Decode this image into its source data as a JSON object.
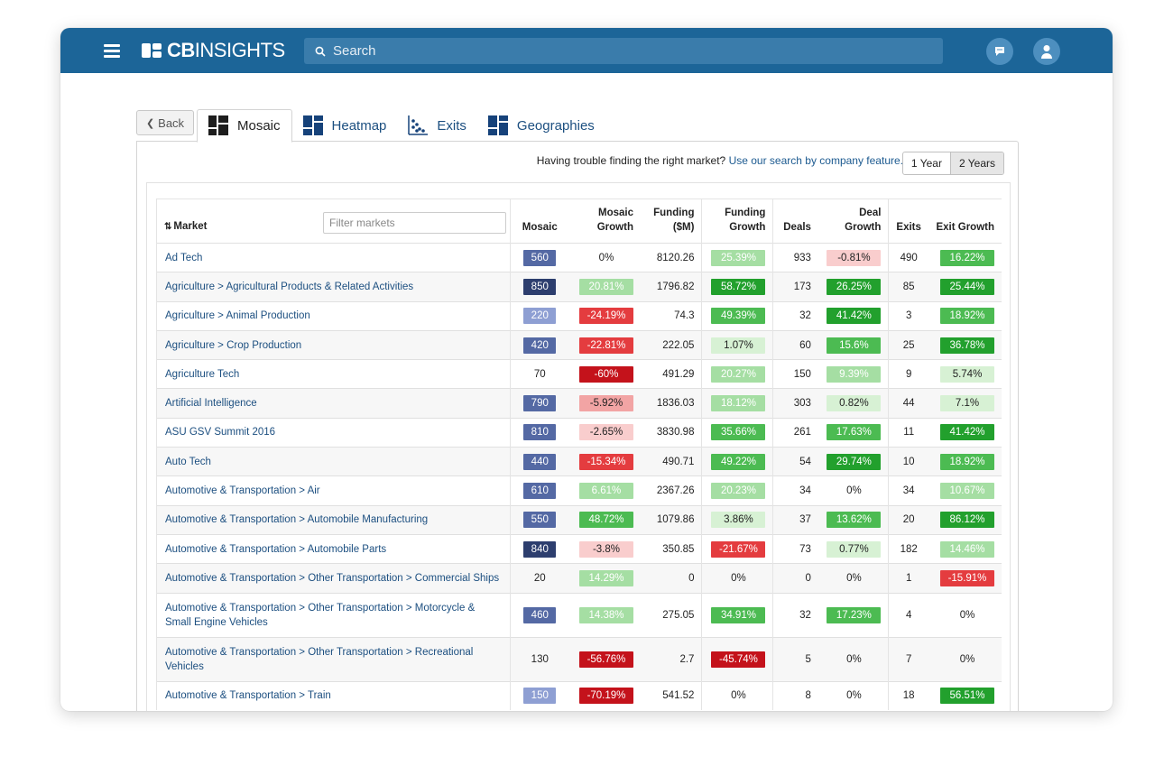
{
  "header": {
    "logo_bold": "CB",
    "logo_light": "INSIGHTS",
    "search_placeholder": "Search"
  },
  "nav": {
    "back_label": "Back",
    "tabs": [
      {
        "label": "Mosaic",
        "icon": "mosaic-icon",
        "active": true
      },
      {
        "label": "Heatmap",
        "icon": "heatmap-icon",
        "active": false
      },
      {
        "label": "Exits",
        "icon": "exits-icon",
        "active": false
      },
      {
        "label": "Geographies",
        "icon": "geographies-icon",
        "active": false
      }
    ]
  },
  "panel": {
    "trouble_text": "Having trouble finding the right market?",
    "trouble_link": "Use our search by company feature.",
    "period_options": [
      "1 Year",
      "2 Years"
    ],
    "period_selected": "2 Years"
  },
  "table": {
    "headers": {
      "market": "Market",
      "filter_placeholder": "Filter markets",
      "mosaic": "Mosaic",
      "mosaic_growth_1": "Mosaic",
      "mosaic_growth_2": "Growth",
      "funding_1": "Funding",
      "funding_2": "($M)",
      "funding_growth_1": "Funding",
      "funding_growth_2": "Growth",
      "deals": "Deals",
      "deal_growth_1": "Deal",
      "deal_growth_2": "Growth",
      "exits": "Exits",
      "exit_growth": "Exit Growth"
    },
    "colors": {
      "mosaic_dark": "#2d3e6e",
      "mosaic_mid": "#5469a4",
      "mosaic_light": "#8e9fd3",
      "green_dark": "#22a02d",
      "green_mid": "#4cbb52",
      "green_light": "#a5dea3",
      "green_pale": "#d7f1d4",
      "red_dark": "#c4121b",
      "red_mid": "#e43c3f",
      "red_light": "#f2a4a4",
      "red_pale": "#f9cdcd"
    },
    "rows": [
      {
        "market": "Ad Tech",
        "mosaic": "560",
        "mosaic_c": "mosaic_mid",
        "mg": "0%",
        "mg_c": "",
        "funding": "8120.26",
        "fg": "25.39%",
        "fg_c": "green_light",
        "deals": "933",
        "dg": "-0.81%",
        "dg_c": "red_pale",
        "exits": "490",
        "eg": "16.22%",
        "eg_c": "green_mid"
      },
      {
        "market": "Agriculture  >  Agricultural Products & Related Activities",
        "mosaic": "850",
        "mosaic_c": "mosaic_dark",
        "mg": "20.81%",
        "mg_c": "green_light",
        "funding": "1796.82",
        "fg": "58.72%",
        "fg_c": "green_dark",
        "deals": "173",
        "dg": "26.25%",
        "dg_c": "green_dark",
        "exits": "85",
        "eg": "25.44%",
        "eg_c": "green_dark"
      },
      {
        "market": "Agriculture  >  Animal Production",
        "mosaic": "220",
        "mosaic_c": "mosaic_light",
        "mg": "-24.19%",
        "mg_c": "red_mid",
        "funding": "74.3",
        "fg": "49.39%",
        "fg_c": "green_mid",
        "deals": "32",
        "dg": "41.42%",
        "dg_c": "green_dark",
        "exits": "3",
        "eg": "18.92%",
        "eg_c": "green_mid"
      },
      {
        "market": "Agriculture  >  Crop Production",
        "mosaic": "420",
        "mosaic_c": "mosaic_mid",
        "mg": "-22.81%",
        "mg_c": "red_mid",
        "funding": "222.05",
        "fg": "1.07%",
        "fg_c": "green_pale",
        "deals": "60",
        "dg": "15.6%",
        "dg_c": "green_mid",
        "exits": "25",
        "eg": "36.78%",
        "eg_c": "green_dark"
      },
      {
        "market": "Agriculture Tech",
        "mosaic": "70",
        "mosaic_c": "",
        "mg": "-60%",
        "mg_c": "red_dark",
        "funding": "491.29",
        "fg": "20.27%",
        "fg_c": "green_light",
        "deals": "150",
        "dg": "9.39%",
        "dg_c": "green_light",
        "exits": "9",
        "eg": "5.74%",
        "eg_c": "green_pale"
      },
      {
        "market": "Artificial Intelligence",
        "mosaic": "790",
        "mosaic_c": "mosaic_mid",
        "mg": "-5.92%",
        "mg_c": "red_light",
        "funding": "1836.03",
        "fg": "18.12%",
        "fg_c": "green_light",
        "deals": "303",
        "dg": "0.82%",
        "dg_c": "green_pale",
        "exits": "44",
        "eg": "7.1%",
        "eg_c": "green_pale"
      },
      {
        "market": "ASU GSV Summit 2016",
        "mosaic": "810",
        "mosaic_c": "mosaic_mid",
        "mg": "-2.65%",
        "mg_c": "red_pale",
        "funding": "3830.98",
        "fg": "35.66%",
        "fg_c": "green_mid",
        "deals": "261",
        "dg": "17.63%",
        "dg_c": "green_mid",
        "exits": "11",
        "eg": "41.42%",
        "eg_c": "green_dark"
      },
      {
        "market": "Auto Tech",
        "mosaic": "440",
        "mosaic_c": "mosaic_mid",
        "mg": "-15.34%",
        "mg_c": "red_mid",
        "funding": "490.71",
        "fg": "49.22%",
        "fg_c": "green_mid",
        "deals": "54",
        "dg": "29.74%",
        "dg_c": "green_dark",
        "exits": "10",
        "eg": "18.92%",
        "eg_c": "green_mid"
      },
      {
        "market": "Automotive & Transportation  >  Air",
        "mosaic": "610",
        "mosaic_c": "mosaic_mid",
        "mg": "6.61%",
        "mg_c": "green_light",
        "funding": "2367.26",
        "fg": "20.23%",
        "fg_c": "green_light",
        "deals": "34",
        "dg": "0%",
        "dg_c": "",
        "exits": "34",
        "eg": "10.67%",
        "eg_c": "green_light"
      },
      {
        "market": "Automotive & Transportation  >  Automobile Manufacturing",
        "mosaic": "550",
        "mosaic_c": "mosaic_mid",
        "mg": "48.72%",
        "mg_c": "green_mid",
        "funding": "1079.86",
        "fg": "3.86%",
        "fg_c": "green_pale",
        "deals": "37",
        "dg": "13.62%",
        "dg_c": "green_mid",
        "exits": "20",
        "eg": "86.12%",
        "eg_c": "green_dark"
      },
      {
        "market": "Automotive & Transportation  >  Automobile Parts",
        "mosaic": "840",
        "mosaic_c": "mosaic_dark",
        "mg": "-3.8%",
        "mg_c": "red_pale",
        "funding": "350.85",
        "fg": "-21.67%",
        "fg_c": "red_mid",
        "deals": "73",
        "dg": "0.77%",
        "dg_c": "green_pale",
        "exits": "182",
        "eg": "14.46%",
        "eg_c": "green_light"
      },
      {
        "market": "Automotive & Transportation  >  Other Transportation  >  Commercial Ships",
        "mosaic": "20",
        "mosaic_c": "",
        "mg": "14.29%",
        "mg_c": "green_light",
        "funding": "0",
        "fg": "0%",
        "fg_c": "",
        "deals": "0",
        "dg": "0%",
        "dg_c": "",
        "exits": "1",
        "eg": "-15.91%",
        "eg_c": "red_mid"
      },
      {
        "market": "Automotive & Transportation  >  Other Transportation  >  Motorcycle & Small Engine Vehicles",
        "mosaic": "460",
        "mosaic_c": "mosaic_mid",
        "mg": "14.38%",
        "mg_c": "green_light",
        "funding": "275.05",
        "fg": "34.91%",
        "fg_c": "green_mid",
        "deals": "32",
        "dg": "17.23%",
        "dg_c": "green_mid",
        "exits": "4",
        "eg": "0%",
        "eg_c": "",
        "tall": true
      },
      {
        "market": "Automotive & Transportation  >  Other Transportation  >  Recreational Vehicles",
        "mosaic": "130",
        "mosaic_c": "",
        "mg": "-56.76%",
        "mg_c": "red_dark",
        "funding": "2.7",
        "fg": "-45.74%",
        "fg_c": "red_dark",
        "deals": "5",
        "dg": "0%",
        "dg_c": "",
        "exits": "7",
        "eg": "0%",
        "eg_c": "",
        "tall": true
      },
      {
        "market": "Automotive & Transportation  >  Train",
        "mosaic": "150",
        "mosaic_c": "mosaic_light",
        "mg": "-70.19%",
        "mg_c": "red_dark",
        "funding": "541.52",
        "fg": "0%",
        "fg_c": "",
        "deals": "8",
        "dg": "0%",
        "dg_c": "",
        "exits": "18",
        "eg": "56.51%",
        "eg_c": "green_dark"
      }
    ]
  }
}
